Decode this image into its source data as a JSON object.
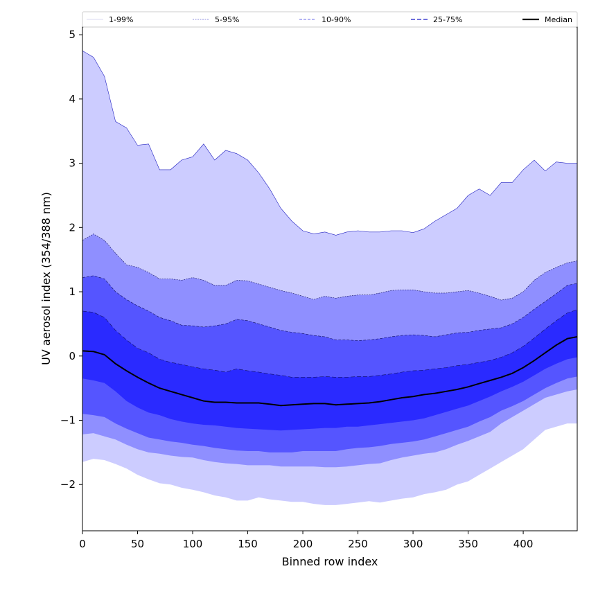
{
  "chart_data": {
    "type": "area",
    "xlabel": "Binned row index",
    "ylabel": "UV aerosol index (354/388 nm)",
    "xlim": [
      0,
      449
    ],
    "ylim": [
      -2.72,
      5.12
    ],
    "xticks": [
      0,
      50,
      100,
      150,
      200,
      250,
      300,
      350,
      400
    ],
    "yticks": [
      -2,
      -1,
      0,
      1,
      2,
      3,
      4,
      5
    ],
    "ytick_labels": [
      "−2",
      "−1",
      "0",
      "1",
      "2",
      "3",
      "4",
      "5"
    ],
    "legend_position": "top, outside plot, single row",
    "legend": [
      "1-99%",
      "5-95%",
      "10-90%",
      "25-75%",
      "Median"
    ],
    "colors": {
      "band_1_99": "#ccccff",
      "band_5_95": "#8f8fff",
      "band_10_90": "#5555ff",
      "band_25_75": "#2a2aff",
      "median": "#000000"
    },
    "x": [
      0,
      10,
      20,
      30,
      40,
      50,
      60,
      70,
      80,
      90,
      100,
      110,
      120,
      130,
      140,
      150,
      160,
      170,
      180,
      190,
      200,
      210,
      220,
      230,
      240,
      250,
      260,
      270,
      280,
      290,
      300,
      310,
      320,
      330,
      340,
      350,
      360,
      370,
      380,
      390,
      400,
      410,
      420,
      430,
      440,
      449
    ],
    "series": [
      {
        "name": "1-99%",
        "upper": [
          4.75,
          4.65,
          4.35,
          3.65,
          3.55,
          3.28,
          3.3,
          2.9,
          2.9,
          3.05,
          3.1,
          3.3,
          3.05,
          3.2,
          3.15,
          3.05,
          2.85,
          2.6,
          2.3,
          2.1,
          1.95,
          1.9,
          1.93,
          1.88,
          1.93,
          1.95,
          1.93,
          1.93,
          1.95,
          1.95,
          1.92,
          1.98,
          2.1,
          2.2,
          2.3,
          2.5,
          2.6,
          2.5,
          2.7,
          2.7,
          2.9,
          3.05,
          2.88,
          3.02,
          3.0,
          3.0
        ],
        "lower": [
          -1.65,
          -1.6,
          -1.62,
          -1.68,
          -1.75,
          -1.85,
          -1.92,
          -1.98,
          -2.0,
          -2.05,
          -2.08,
          -2.12,
          -2.17,
          -2.2,
          -2.25,
          -2.25,
          -2.2,
          -2.23,
          -2.25,
          -2.27,
          -2.27,
          -2.3,
          -2.32,
          -2.32,
          -2.3,
          -2.28,
          -2.26,
          -2.28,
          -2.25,
          -2.22,
          -2.2,
          -2.15,
          -2.12,
          -2.08,
          -2.0,
          -1.95,
          -1.85,
          -1.75,
          -1.65,
          -1.55,
          -1.45,
          -1.3,
          -1.15,
          -1.1,
          -1.05,
          -1.05
        ]
      },
      {
        "name": "5-95%",
        "upper": [
          1.8,
          1.9,
          1.8,
          1.6,
          1.42,
          1.38,
          1.3,
          1.2,
          1.2,
          1.18,
          1.22,
          1.18,
          1.1,
          1.1,
          1.18,
          1.17,
          1.12,
          1.07,
          1.02,
          0.98,
          0.93,
          0.88,
          0.93,
          0.9,
          0.93,
          0.95,
          0.95,
          0.98,
          1.02,
          1.03,
          1.03,
          1.0,
          0.98,
          0.98,
          1.0,
          1.02,
          0.98,
          0.93,
          0.87,
          0.9,
          1.0,
          1.18,
          1.3,
          1.38,
          1.45,
          1.48
        ],
        "lower": [
          -1.22,
          -1.2,
          -1.25,
          -1.3,
          -1.38,
          -1.45,
          -1.5,
          -1.52,
          -1.55,
          -1.57,
          -1.58,
          -1.62,
          -1.65,
          -1.67,
          -1.68,
          -1.7,
          -1.7,
          -1.7,
          -1.72,
          -1.72,
          -1.72,
          -1.72,
          -1.73,
          -1.73,
          -1.72,
          -1.7,
          -1.68,
          -1.67,
          -1.62,
          -1.58,
          -1.55,
          -1.52,
          -1.5,
          -1.45,
          -1.38,
          -1.32,
          -1.25,
          -1.18,
          -1.05,
          -0.95,
          -0.85,
          -0.75,
          -0.65,
          -0.6,
          -0.55,
          -0.52
        ]
      },
      {
        "name": "10-90%",
        "upper": [
          1.22,
          1.25,
          1.2,
          1.0,
          0.88,
          0.78,
          0.7,
          0.6,
          0.55,
          0.48,
          0.47,
          0.45,
          0.47,
          0.5,
          0.57,
          0.55,
          0.5,
          0.45,
          0.4,
          0.37,
          0.35,
          0.32,
          0.3,
          0.25,
          0.25,
          0.24,
          0.25,
          0.27,
          0.3,
          0.32,
          0.33,
          0.32,
          0.3,
          0.33,
          0.36,
          0.37,
          0.4,
          0.42,
          0.44,
          0.5,
          0.6,
          0.73,
          0.85,
          0.97,
          1.1,
          1.13
        ],
        "lower": [
          -0.9,
          -0.92,
          -0.95,
          -1.05,
          -1.13,
          -1.2,
          -1.27,
          -1.3,
          -1.33,
          -1.35,
          -1.38,
          -1.4,
          -1.43,
          -1.45,
          -1.47,
          -1.48,
          -1.48,
          -1.5,
          -1.5,
          -1.5,
          -1.48,
          -1.48,
          -1.48,
          -1.48,
          -1.45,
          -1.43,
          -1.42,
          -1.4,
          -1.37,
          -1.35,
          -1.33,
          -1.3,
          -1.25,
          -1.2,
          -1.15,
          -1.1,
          -1.02,
          -0.95,
          -0.85,
          -0.78,
          -0.7,
          -0.6,
          -0.5,
          -0.42,
          -0.35,
          -0.32
        ]
      },
      {
        "name": "25-75%",
        "upper": [
          0.7,
          0.68,
          0.6,
          0.4,
          0.25,
          0.12,
          0.05,
          -0.05,
          -0.1,
          -0.13,
          -0.17,
          -0.2,
          -0.22,
          -0.25,
          -0.2,
          -0.23,
          -0.25,
          -0.28,
          -0.3,
          -0.33,
          -0.33,
          -0.33,
          -0.32,
          -0.33,
          -0.33,
          -0.32,
          -0.32,
          -0.3,
          -0.28,
          -0.25,
          -0.23,
          -0.22,
          -0.2,
          -0.18,
          -0.15,
          -0.13,
          -0.1,
          -0.07,
          -0.02,
          0.05,
          0.15,
          0.28,
          0.42,
          0.55,
          0.67,
          0.72
        ],
        "lower": [
          -0.35,
          -0.38,
          -0.42,
          -0.55,
          -0.7,
          -0.8,
          -0.88,
          -0.92,
          -0.98,
          -1.02,
          -1.05,
          -1.07,
          -1.08,
          -1.1,
          -1.12,
          -1.13,
          -1.14,
          -1.15,
          -1.16,
          -1.15,
          -1.14,
          -1.13,
          -1.12,
          -1.12,
          -1.1,
          -1.1,
          -1.08,
          -1.06,
          -1.04,
          -1.02,
          -1.0,
          -0.97,
          -0.92,
          -0.87,
          -0.82,
          -0.77,
          -0.7,
          -0.63,
          -0.55,
          -0.48,
          -0.4,
          -0.3,
          -0.2,
          -0.12,
          -0.05,
          -0.02
        ]
      },
      {
        "name": "Median",
        "values": [
          0.08,
          0.07,
          0.02,
          -0.12,
          -0.23,
          -0.33,
          -0.42,
          -0.5,
          -0.55,
          -0.6,
          -0.65,
          -0.7,
          -0.72,
          -0.72,
          -0.73,
          -0.73,
          -0.73,
          -0.75,
          -0.77,
          -0.76,
          -0.75,
          -0.74,
          -0.74,
          -0.76,
          -0.75,
          -0.74,
          -0.73,
          -0.71,
          -0.68,
          -0.65,
          -0.63,
          -0.6,
          -0.58,
          -0.55,
          -0.52,
          -0.48,
          -0.43,
          -0.38,
          -0.33,
          -0.27,
          -0.18,
          -0.07,
          0.05,
          0.17,
          0.27,
          0.3
        ]
      }
    ]
  }
}
